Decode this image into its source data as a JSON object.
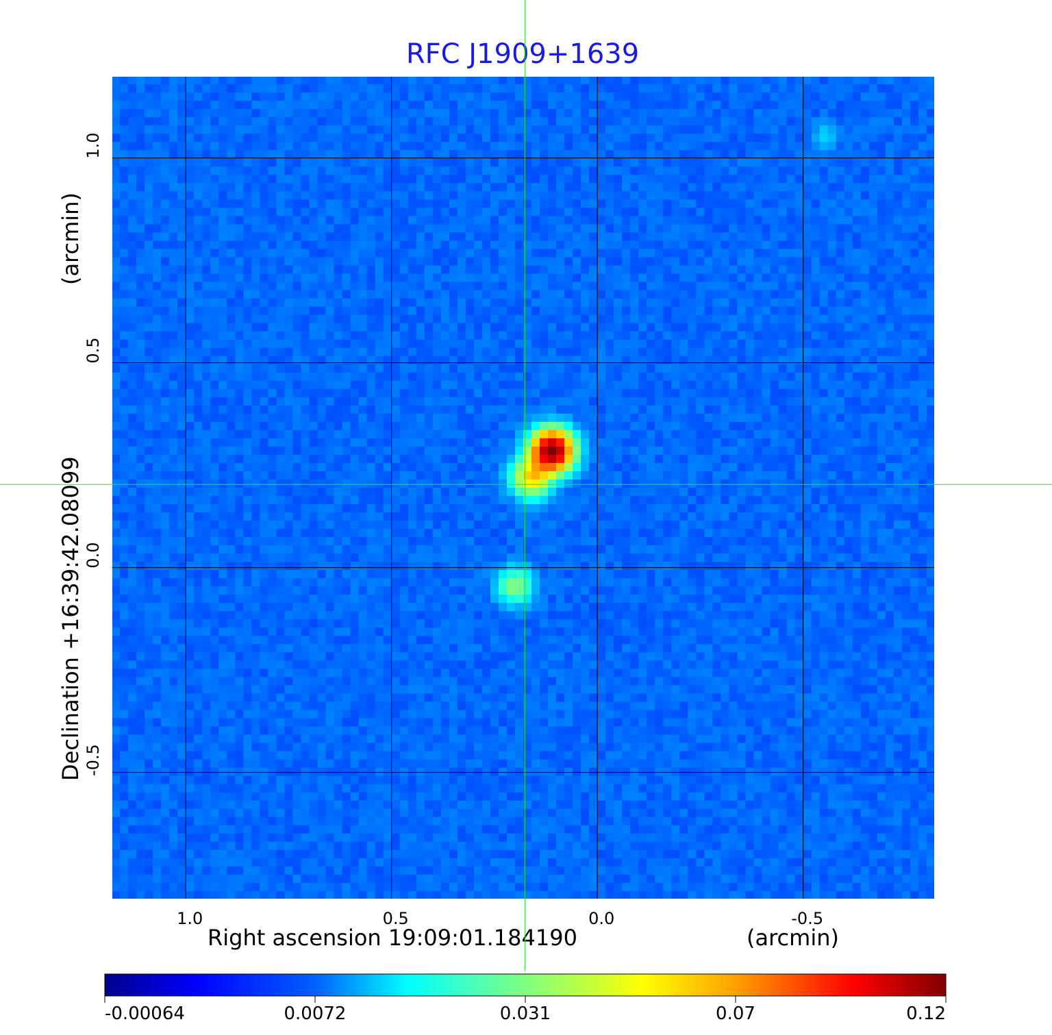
{
  "chart_data": {
    "type": "heatmap",
    "title": "RFC J1909+1639",
    "xlabel": "Right ascension  19:09:01.184190",
    "xunit": "(arcmin)",
    "ylabel": "Declination  +16:39:42.08099",
    "yunit": "(arcmin)",
    "xlim": [
      1.18,
      -0.82
    ],
    "ylim": [
      -0.81,
      1.2
    ],
    "x_ticks": [
      1.0,
      0.5,
      0.0,
      -0.5
    ],
    "x_tick_labels": [
      "1.0",
      "0.5",
      "0.0",
      "-0.5"
    ],
    "y_ticks": [
      1.0,
      0.5,
      0.0,
      -0.5
    ],
    "y_tick_labels": [
      "1.0",
      "0.5",
      "0.0",
      "-0.5"
    ],
    "grid": true,
    "colormap": "jet",
    "crosshair": {
      "x": 0.176,
      "y": 0.203,
      "color": "#33dd33"
    },
    "sources": [
      {
        "x": 0.11,
        "y": 0.285,
        "peak": 0.12,
        "sigma": 0.032
      },
      {
        "x": 0.16,
        "y": 0.22,
        "peak": 0.045,
        "sigma": 0.03
      },
      {
        "x": 0.2,
        "y": -0.045,
        "peak": 0.022,
        "sigma": 0.028
      },
      {
        "x": -0.55,
        "y": 1.05,
        "peak": 0.006,
        "sigma": 0.02
      }
    ],
    "colorbar": {
      "tick_labels": [
        "-0.00064",
        "0.0072",
        "0.031",
        "0.07",
        "0.12"
      ],
      "tick_values": [
        -0.00064,
        0.0072,
        0.031,
        0.07,
        0.12
      ]
    }
  }
}
